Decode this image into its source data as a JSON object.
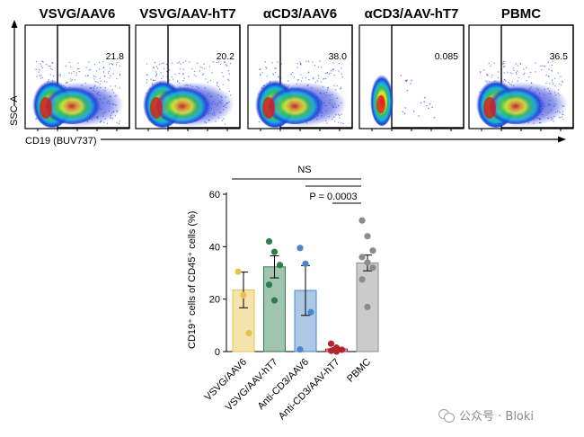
{
  "flow_panels": [
    {
      "title": "VSVG/AAV6",
      "percent": "21.8",
      "positive_fraction": "high"
    },
    {
      "title": "VSVG/AAV-hT7",
      "percent": "20.2",
      "positive_fraction": "high"
    },
    {
      "title": "αCD3/AAV6",
      "percent": "38.0",
      "positive_fraction": "high"
    },
    {
      "title": "αCD3/AAV-hT7",
      "percent": "0.085",
      "positive_fraction": "none"
    },
    {
      "title": "PBMC",
      "percent": "36.5",
      "positive_fraction": "high"
    }
  ],
  "flow_axes": {
    "ylabel": "SSC-A",
    "xlabel": "CD19 (BUV737)"
  },
  "colors": {
    "VSVG/AAV6": "#e8c24a",
    "VSVG/AAV-hT7": "#2e7d4f",
    "Anti-CD3/AAV6": "#4a86c8",
    "Anti-CD3/AAV-hT7": "#b0282e",
    "PBMC": "#8c8c8c"
  },
  "chart_data": {
    "type": "bar",
    "categories": [
      "VSVG/AAV6",
      "VSVG/AAV-hT7",
      "Anti-CD3/AAV6",
      "Anti-CD3/AAV-hT7",
      "PBMC"
    ],
    "ylabel": "CD19⁺ cells of CD45⁺ cells (%)",
    "yticks": [
      "0",
      "20",
      "40",
      "60"
    ],
    "ylim": [
      0,
      60
    ],
    "series": [
      {
        "values": [
          23.5,
          32.3,
          23.3,
          1.0,
          33.8
        ],
        "sem": [
          6.8,
          4.2,
          9.5,
          0.5,
          3.0
        ],
        "points": [
          [
            30.5,
            21.5,
            7.0
          ],
          [
            42.0,
            38.0,
            33.0,
            25.5,
            19.5
          ],
          [
            39.5,
            33.5,
            15.0,
            0.8
          ],
          [
            3.0,
            1.5,
            0.7,
            0.3,
            0.0
          ],
          [
            50.0,
            44.0,
            38.5,
            36.0,
            34.0,
            32.0,
            27.5,
            17.0
          ]
        ]
      }
    ],
    "annotations": {
      "ns_label": "NS",
      "p_label": "P = 0.0003"
    }
  },
  "watermark": {
    "text": "公众号 · Bloki"
  }
}
